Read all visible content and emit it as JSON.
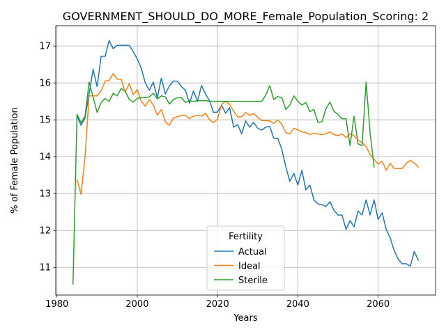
{
  "chart_data": {
    "type": "line",
    "title": "GOVERNMENT_SHOULD_DO_MORE_Female_Population_Scoring: 2",
    "xlabel": "Years",
    "ylabel": "% of Female Population",
    "xlim": [
      1979.7,
      2074.3
    ],
    "ylim": [
      10.25,
      17.55
    ],
    "xticks": [
      1980,
      2000,
      2020,
      2040,
      2060
    ],
    "yticks": [
      11,
      12,
      13,
      14,
      15,
      16,
      17
    ],
    "grid": true,
    "legend": {
      "title": "Fertility",
      "placement": "lower-center"
    },
    "series": [
      {
        "name": "Actual",
        "color": "#1f77b4",
        "x": [
          1985,
          1986,
          1987,
          1988,
          1989,
          1990,
          1991,
          1992,
          1993,
          1994,
          1995,
          1996,
          1997,
          1998,
          1999,
          2000,
          2001,
          2002,
          2003,
          2004,
          2005,
          2006,
          2007,
          2008,
          2009,
          2010,
          2011,
          2012,
          2013,
          2014,
          2015,
          2016,
          2017,
          2018,
          2019,
          2020,
          2021,
          2022,
          2023,
          2024,
          2025,
          2026,
          2027,
          2028,
          2029,
          2030,
          2031,
          2032,
          2033,
          2034,
          2035,
          2036,
          2037,
          2038,
          2039,
          2040,
          2041,
          2042,
          2043,
          2044,
          2045,
          2046,
          2047,
          2048,
          2049,
          2050,
          2051,
          2052,
          2053,
          2054,
          2055,
          2056,
          2057,
          2058,
          2059,
          2060,
          2061,
          2062,
          2063,
          2064,
          2065,
          2066,
          2067,
          2068,
          2069,
          2070
        ],
        "y": [
          15.1,
          14.85,
          15.05,
          15.7,
          16.37,
          15.9,
          16.72,
          16.72,
          17.15,
          16.93,
          17.02,
          17.02,
          17.02,
          17.02,
          16.85,
          16.65,
          16.4,
          16.0,
          15.8,
          16.02,
          15.6,
          16.13,
          15.7,
          15.92,
          16.05,
          16.05,
          15.9,
          15.8,
          15.45,
          15.78,
          15.5,
          15.93,
          15.7,
          15.52,
          15.2,
          15.21,
          15.4,
          15.18,
          15.33,
          14.8,
          14.87,
          14.62,
          14.97,
          14.8,
          14.93,
          14.77,
          14.72,
          14.8,
          14.82,
          14.5,
          14.5,
          14.2,
          13.73,
          13.33,
          13.55,
          13.23,
          13.63,
          13.1,
          13.23,
          12.83,
          12.72,
          12.7,
          12.65,
          12.78,
          12.55,
          12.42,
          12.42,
          12.03,
          12.27,
          12.1,
          12.53,
          12.42,
          12.83,
          12.42,
          12.83,
          12.3,
          12.48,
          12.03,
          11.8,
          11.45,
          11.22,
          11.1,
          11.1,
          11.03,
          11.43,
          11.2
        ]
      },
      {
        "name": "Ideal",
        "color": "#ff7f0e",
        "x": [
          1985,
          1986,
          1987,
          1988,
          1989,
          1990,
          1991,
          1992,
          1993,
          1994,
          1995,
          1996,
          1997,
          1998,
          1999,
          2000,
          2001,
          2002,
          2003,
          2004,
          2005,
          2006,
          2007,
          2008,
          2009,
          2010,
          2011,
          2012,
          2013,
          2014,
          2015,
          2016,
          2017,
          2018,
          2019,
          2020,
          2021,
          2022,
          2023,
          2024,
          2025,
          2026,
          2027,
          2028,
          2029,
          2030,
          2031,
          2032,
          2033,
          2034,
          2035,
          2036,
          2037,
          2038,
          2039,
          2040,
          2041,
          2042,
          2043,
          2044,
          2045,
          2046,
          2047,
          2048,
          2049,
          2050,
          2051,
          2052,
          2053,
          2054,
          2055,
          2056,
          2057,
          2058,
          2059,
          2060,
          2061,
          2062,
          2063,
          2064,
          2065,
          2066,
          2067,
          2068,
          2069,
          2070
        ],
        "y": [
          13.38,
          12.98,
          14.0,
          15.65,
          15.65,
          15.65,
          15.78,
          16.05,
          16.07,
          16.25,
          16.1,
          16.1,
          15.75,
          15.98,
          15.68,
          15.82,
          15.5,
          15.37,
          15.55,
          15.4,
          15.13,
          15.28,
          14.95,
          14.85,
          15.05,
          15.08,
          15.12,
          15.12,
          15.03,
          15.1,
          15.12,
          15.1,
          15.18,
          15.0,
          14.92,
          15.02,
          15.42,
          15.5,
          15.42,
          15.23,
          15.08,
          15.08,
          15.2,
          15.12,
          15.17,
          15.07,
          14.98,
          14.98,
          14.97,
          14.9,
          15.0,
          14.88,
          14.65,
          14.62,
          14.77,
          14.73,
          14.67,
          14.65,
          14.6,
          14.63,
          14.62,
          14.6,
          14.62,
          14.67,
          14.6,
          14.57,
          14.62,
          14.52,
          14.62,
          14.57,
          14.45,
          14.38,
          14.28,
          14.05,
          13.93,
          13.8,
          13.88,
          13.63,
          13.82,
          13.68,
          13.68,
          13.68,
          13.82,
          13.9,
          13.83,
          13.72
        ]
      },
      {
        "name": "Sterile",
        "color": "#2ca02c",
        "x": [
          1984,
          1985,
          1986,
          1987,
          1988,
          1989,
          1990,
          1991,
          1992,
          1993,
          1994,
          1995,
          1996,
          1997,
          1998,
          1999,
          2000,
          2001,
          2002,
          2003,
          2004,
          2005,
          2006,
          2007,
          2008,
          2009,
          2010,
          2011,
          2012,
          2013,
          2014,
          2015,
          2016,
          2017,
          2018,
          2019,
          2020,
          2021,
          2022,
          2023,
          2024,
          2025,
          2026,
          2027,
          2028,
          2029,
          2030,
          2031,
          2032,
          2033,
          2034,
          2035,
          2036,
          2037,
          2038,
          2039,
          2040,
          2041,
          2042,
          2043,
          2044,
          2045,
          2046,
          2047,
          2048,
          2049,
          2050,
          2051,
          2052,
          2053,
          2054,
          2055,
          2056,
          2057,
          2058,
          2059
        ],
        "y": [
          10.55,
          15.15,
          14.92,
          15.1,
          16.02,
          15.62,
          15.2,
          15.47,
          15.58,
          15.5,
          15.72,
          15.65,
          15.85,
          15.78,
          15.55,
          15.48,
          15.58,
          15.6,
          15.6,
          15.62,
          15.72,
          15.57,
          15.65,
          15.62,
          15.43,
          15.55,
          15.6,
          15.6,
          15.47,
          15.52,
          15.5,
          15.52,
          15.52,
          15.52,
          15.5,
          15.5,
          15.5,
          15.5,
          15.5,
          15.5,
          15.5,
          15.5,
          15.5,
          15.5,
          15.5,
          15.5,
          15.5,
          15.5,
          15.67,
          15.93,
          15.55,
          15.63,
          15.6,
          15.28,
          15.4,
          15.65,
          15.5,
          15.4,
          15.47,
          15.22,
          15.28,
          14.93,
          14.95,
          15.3,
          15.48,
          15.23,
          15.15,
          15.03,
          15.03,
          14.3,
          15.1,
          14.35,
          14.3,
          16.03,
          14.65,
          13.72
        ]
      }
    ]
  }
}
